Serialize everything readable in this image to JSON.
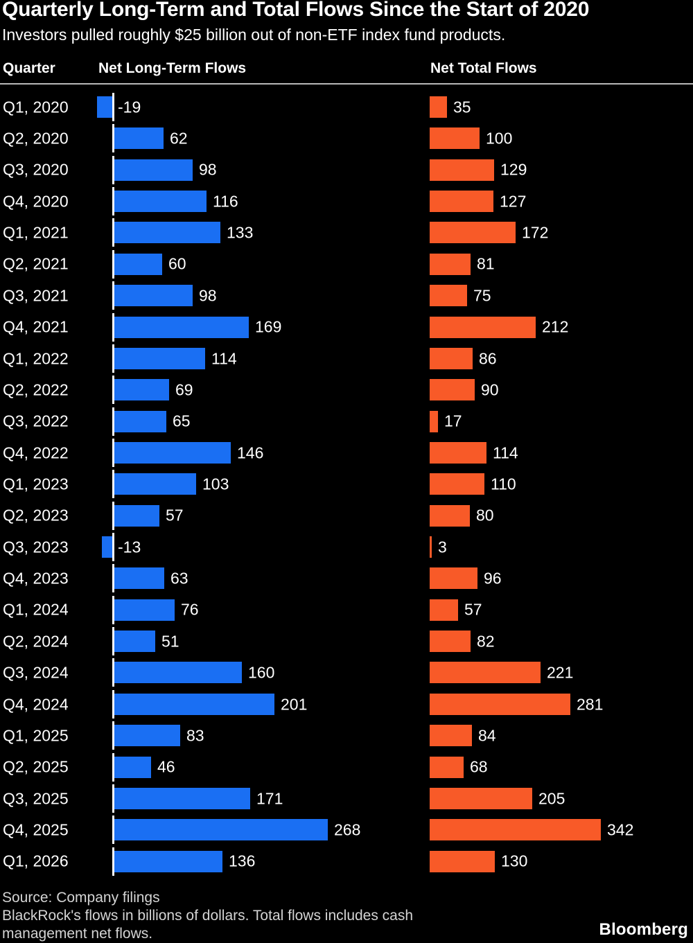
{
  "header": {
    "title": "Quarterly Long-Term and Total Flows Since the Start of 2020",
    "subtitle": "Investors pulled roughly $25 billion out of non-ETF index fund products."
  },
  "columns": {
    "quarter": "Quarter",
    "long_term": "Net Long-Term Flows",
    "total": "Net Total Flows"
  },
  "colors": {
    "background": "#000000",
    "long_term_bar": "#1a6ff3",
    "total_bar": "#f85a28",
    "text": "#ffffff",
    "footnote_text": "#d4d4d4",
    "header_rule": "#b9b9b9",
    "zero_baseline": "#ffffff"
  },
  "chart_data": {
    "type": "bar",
    "orientation": "horizontal",
    "title": "Quarterly Long-Term and Total Flows Since the Start of 2020",
    "subtitle": "Investors pulled roughly $25 billion out of non-ETF index fund products.",
    "value_unit": "billions of dollars",
    "gridlines": false,
    "categories": [
      "Q1, 2020",
      "Q2, 2020",
      "Q3, 2020",
      "Q4, 2020",
      "Q1, 2021",
      "Q2, 2021",
      "Q3, 2021",
      "Q4, 2021",
      "Q1, 2022",
      "Q2, 2022",
      "Q3, 2022",
      "Q4, 2022",
      "Q1, 2023",
      "Q2, 2023",
      "Q3, 2023",
      "Q4, 2023",
      "Q1, 2024",
      "Q2, 2024",
      "Q3, 2024",
      "Q4, 2024",
      "Q1, 2025",
      "Q2, 2025",
      "Q3, 2025",
      "Q4, 2025",
      "Q1, 2026"
    ],
    "series": [
      {
        "name": "Net Long-Term Flows",
        "color": "#1a6ff3",
        "values": [
          -19,
          62,
          98,
          116,
          133,
          60,
          98,
          169,
          114,
          69,
          65,
          146,
          103,
          57,
          -13,
          63,
          76,
          51,
          160,
          201,
          83,
          46,
          171,
          268,
          136
        ]
      },
      {
        "name": "Net Total Flows",
        "color": "#f85a28",
        "values": [
          35,
          100,
          129,
          127,
          172,
          81,
          75,
          212,
          86,
          90,
          17,
          114,
          110,
          80,
          3,
          96,
          57,
          82,
          221,
          281,
          84,
          68,
          205,
          342,
          130
        ]
      }
    ]
  },
  "footer": {
    "source": "Source: Company filings",
    "note": "BlackRock's flows in billions of dollars. Total flows includes cash management net flows.",
    "brand": "Bloomberg"
  }
}
